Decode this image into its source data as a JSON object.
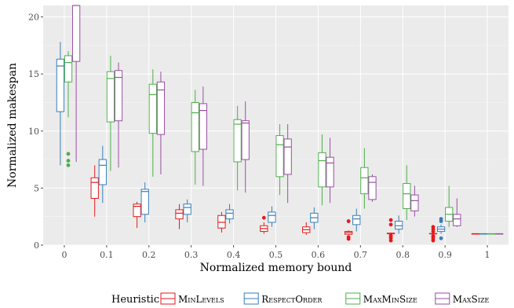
{
  "chart_data": {
    "type": "boxplot",
    "xlabel": "Normalized memory bound",
    "ylabel": "Normalized makespan",
    "categories": [
      "0",
      "0.1",
      "0.2",
      "0.3",
      "0.4",
      "0.5",
      "0.6",
      "0.7",
      "0.8",
      "0.9",
      "1"
    ],
    "yticks": [
      0,
      5,
      10,
      15,
      20
    ],
    "ylim": [
      0,
      21
    ],
    "grid": true,
    "legend": {
      "title": "Heuristic",
      "placement": "bottom"
    },
    "series": [
      {
        "name": "MinLevels",
        "color": "#e41a1c",
        "boxes": [
          null,
          {
            "min": 2.5,
            "q1": 4.1,
            "median": 5.5,
            "q3": 5.9,
            "max": 7.0,
            "outliers": []
          },
          {
            "min": 1.5,
            "q1": 2.5,
            "median": 3.4,
            "q3": 3.6,
            "max": 3.8,
            "outliers": []
          },
          {
            "min": 1.4,
            "q1": 2.3,
            "median": 2.8,
            "q3": 3.1,
            "max": 3.6,
            "outliers": []
          },
          {
            "min": 1.1,
            "q1": 1.5,
            "median": 2.0,
            "q3": 2.6,
            "max": 2.9,
            "outliers": []
          },
          {
            "min": 1.0,
            "q1": 1.2,
            "median": 1.45,
            "q3": 1.7,
            "max": 2.0,
            "outliers": [
              2.4
            ]
          },
          {
            "min": 0.9,
            "q1": 1.1,
            "median": 1.35,
            "q3": 1.6,
            "max": 2.0,
            "outliers": []
          },
          {
            "min": 0.9,
            "q1": 0.95,
            "median": 1.1,
            "q3": 1.2,
            "max": 1.3,
            "outliers": [
              0.55,
              0.7,
              2.1
            ]
          },
          {
            "min": 0.95,
            "q1": 1.0,
            "median": 1.0,
            "q3": 1.05,
            "max": 1.1,
            "outliers": [
              0.4,
              0.6,
              0.7,
              0.85,
              1.8,
              2.2
            ]
          },
          {
            "min": 0.95,
            "q1": 1.0,
            "median": 1.0,
            "q3": 1.02,
            "max": 1.05,
            "outliers": [
              0.4,
              0.55,
              0.7,
              0.8,
              1.2,
              1.4,
              1.6
            ]
          },
          {
            "min": 1.0,
            "q1": 1.0,
            "median": 1.0,
            "q3": 1.0,
            "max": 1.0,
            "outliers": []
          }
        ]
      },
      {
        "name": "RespectOrder",
        "color": "#377eb8",
        "boxes": [
          {
            "min": 7.0,
            "q1": 11.7,
            "median": 15.7,
            "q3": 16.3,
            "max": 17.8,
            "outliers": []
          },
          {
            "min": 3.7,
            "q1": 5.3,
            "median": 7.0,
            "q3": 7.5,
            "max": 8.7,
            "outliers": []
          },
          {
            "min": 2.0,
            "q1": 2.7,
            "median": 4.7,
            "q3": 4.9,
            "max": 5.5,
            "outliers": []
          },
          {
            "min": 2.0,
            "q1": 2.7,
            "median": 3.3,
            "q3": 3.6,
            "max": 4.0,
            "outliers": []
          },
          {
            "min": 1.9,
            "q1": 2.3,
            "median": 2.8,
            "q3": 3.1,
            "max": 3.6,
            "outliers": []
          },
          {
            "min": 1.6,
            "q1": 2.0,
            "median": 2.6,
            "q3": 2.9,
            "max": 3.4,
            "outliers": []
          },
          {
            "min": 1.4,
            "q1": 2.0,
            "median": 2.4,
            "q3": 2.8,
            "max": 3.3,
            "outliers": []
          },
          {
            "min": 1.2,
            "q1": 1.8,
            "median": 2.3,
            "q3": 2.6,
            "max": 3.2,
            "outliers": []
          },
          {
            "min": 1.0,
            "q1": 1.4,
            "median": 1.7,
            "q3": 2.1,
            "max": 2.6,
            "outliers": []
          },
          {
            "min": 1.0,
            "q1": 1.2,
            "median": 1.4,
            "q3": 1.6,
            "max": 1.8,
            "outliers": [
              0.6,
              2.1,
              2.3
            ]
          },
          {
            "min": 1.0,
            "q1": 1.0,
            "median": 1.0,
            "q3": 1.0,
            "max": 1.0,
            "outliers": []
          }
        ]
      },
      {
        "name": "MaxMinSize",
        "color": "#4daf4a",
        "boxes": [
          {
            "min": 11.2,
            "q1": 14.3,
            "median": 16.0,
            "q3": 16.6,
            "max": 17.0,
            "outliers": [
              7.0,
              7.4,
              8.0
            ]
          },
          {
            "min": 6.5,
            "q1": 10.8,
            "median": 14.6,
            "q3": 15.2,
            "max": 16.6,
            "outliers": []
          },
          {
            "min": 6.0,
            "q1": 9.8,
            "median": 13.2,
            "q3": 14.1,
            "max": 15.4,
            "outliers": []
          },
          {
            "min": 5.3,
            "q1": 8.2,
            "median": 11.6,
            "q3": 12.5,
            "max": 13.6,
            "outliers": []
          },
          {
            "min": 4.8,
            "q1": 7.3,
            "median": 10.6,
            "q3": 11.0,
            "max": 12.2,
            "outliers": []
          },
          {
            "min": 4.4,
            "q1": 6.0,
            "median": 8.8,
            "q3": 9.6,
            "max": 10.6,
            "outliers": []
          },
          {
            "min": 3.5,
            "q1": 5.1,
            "median": 7.4,
            "q3": 8.1,
            "max": 9.7,
            "outliers": []
          },
          {
            "min": 3.2,
            "q1": 4.5,
            "median": 5.9,
            "q3": 6.8,
            "max": 8.5,
            "outliers": []
          },
          {
            "min": 2.2,
            "q1": 3.2,
            "median": 4.5,
            "q3": 5.4,
            "max": 7.0,
            "outliers": []
          },
          {
            "min": 1.6,
            "q1": 2.1,
            "median": 2.7,
            "q3": 3.3,
            "max": 5.2,
            "outliers": []
          },
          {
            "min": 1.0,
            "q1": 1.0,
            "median": 1.0,
            "q3": 1.0,
            "max": 1.0,
            "outliers": []
          }
        ]
      },
      {
        "name": "MaxSize",
        "color": "#984ea3",
        "boxes": [
          {
            "min": 7.3,
            "q1": 16.1,
            "median": 21.0,
            "q3": 21.0,
            "max": 21.0,
            "outliers": []
          },
          {
            "min": 6.8,
            "q1": 10.9,
            "median": 14.7,
            "q3": 15.3,
            "max": 16.0,
            "outliers": []
          },
          {
            "min": 6.2,
            "q1": 9.7,
            "median": 13.6,
            "q3": 14.3,
            "max": 15.2,
            "outliers": []
          },
          {
            "min": 5.2,
            "q1": 8.4,
            "median": 11.8,
            "q3": 12.4,
            "max": 13.9,
            "outliers": []
          },
          {
            "min": 4.6,
            "q1": 7.5,
            "median": 10.7,
            "q3": 10.9,
            "max": 12.6,
            "outliers": []
          },
          {
            "min": 3.7,
            "q1": 6.2,
            "median": 8.6,
            "q3": 9.3,
            "max": 10.6,
            "outliers": []
          },
          {
            "min": 3.7,
            "q1": 5.1,
            "median": 7.2,
            "q3": 7.7,
            "max": 9.4,
            "outliers": []
          },
          {
            "min": 3.8,
            "q1": 4.0,
            "median": 5.5,
            "q3": 6.0,
            "max": 6.2,
            "outliers": []
          },
          {
            "min": 2.5,
            "q1": 3.0,
            "median": 3.9,
            "q3": 4.4,
            "max": 5.2,
            "outliers": []
          },
          {
            "min": 1.6,
            "q1": 1.7,
            "median": 2.3,
            "q3": 2.7,
            "max": 4.1,
            "outliers": []
          },
          {
            "min": 1.0,
            "q1": 1.0,
            "median": 1.0,
            "q3": 1.0,
            "max": 1.0,
            "outliers": []
          }
        ]
      }
    ]
  }
}
